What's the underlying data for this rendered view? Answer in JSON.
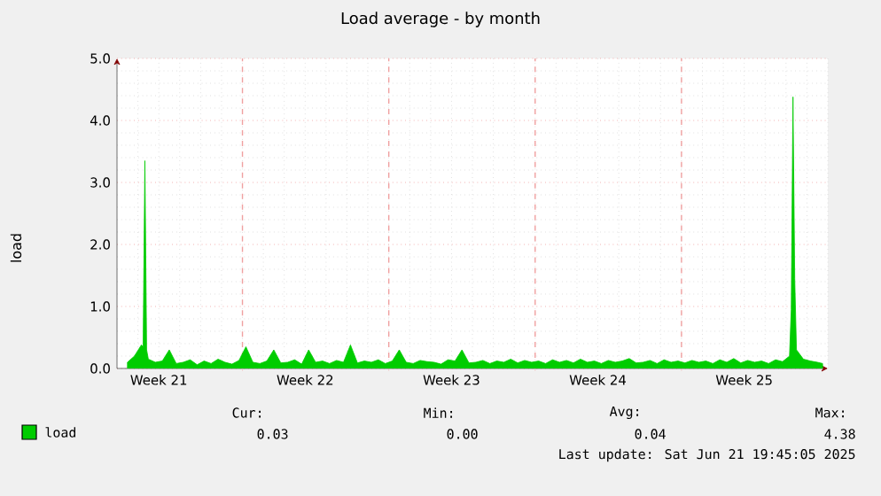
{
  "chart_data": {
    "type": "area",
    "title": "Load average - by month",
    "ylabel": "load",
    "xlim": [
      "2025-05-19",
      "2025-06-22"
    ],
    "ylim": [
      0,
      5
    ],
    "xticks": [
      {
        "value": "2025-05-21",
        "label": "Week 21"
      },
      {
        "value": "2025-05-28",
        "label": "Week 22"
      },
      {
        "value": "2025-06-04",
        "label": "Week 23"
      },
      {
        "value": "2025-06-11",
        "label": "Week 24"
      },
      {
        "value": "2025-06-18",
        "label": "Week 25"
      },
      {
        "value": "2025-05-25",
        "label": null
      },
      {
        "value": "2025-06-01",
        "label": null
      },
      {
        "value": "2025-06-08",
        "label": null
      },
      {
        "value": "2025-06-15",
        "label": null
      }
    ],
    "yticks": [
      {
        "value": 0,
        "label": "0.0"
      },
      {
        "value": 1,
        "label": "1.0"
      },
      {
        "value": 2,
        "label": "2.0"
      },
      {
        "value": 3,
        "label": "3.0"
      },
      {
        "value": 4,
        "label": "4.0"
      },
      {
        "value": 5,
        "label": "5.0"
      }
    ],
    "grid": true,
    "legend": "bottom",
    "x": [
      "2025-05-19T12:00",
      "2025-05-19T20:00",
      "2025-05-20T04:00",
      "2025-05-20T06:00",
      "2025-05-20T08:00",
      "2025-05-20T10:00",
      "2025-05-20T12:00",
      "2025-05-20T20:00",
      "2025-05-21T04:00",
      "2025-05-21T12:00",
      "2025-05-21T20:00",
      "2025-05-22T04:00",
      "2025-05-22T12:00",
      "2025-05-22T20:00",
      "2025-05-23T04:00",
      "2025-05-23T12:00",
      "2025-05-23T20:00",
      "2025-05-24T04:00",
      "2025-05-24T12:00",
      "2025-05-24T20:00",
      "2025-05-25T04:00",
      "2025-05-25T12:00",
      "2025-05-25T20:00",
      "2025-05-26T04:00",
      "2025-05-26T12:00",
      "2025-05-26T20:00",
      "2025-05-27T04:00",
      "2025-05-27T12:00",
      "2025-05-27T20:00",
      "2025-05-28T04:00",
      "2025-05-28T12:00",
      "2025-05-28T20:00",
      "2025-05-29T04:00",
      "2025-05-29T12:00",
      "2025-05-29T20:00",
      "2025-05-30T04:00",
      "2025-05-30T12:00",
      "2025-05-30T20:00",
      "2025-05-31T04:00",
      "2025-05-31T12:00",
      "2025-05-31T20:00",
      "2025-06-01T04:00",
      "2025-06-01T12:00",
      "2025-06-01T20:00",
      "2025-06-02T04:00",
      "2025-06-02T12:00",
      "2025-06-02T20:00",
      "2025-06-03T04:00",
      "2025-06-03T12:00",
      "2025-06-03T20:00",
      "2025-06-04T04:00",
      "2025-06-04T12:00",
      "2025-06-04T20:00",
      "2025-06-05T04:00",
      "2025-06-05T12:00",
      "2025-06-05T20:00",
      "2025-06-06T04:00",
      "2025-06-06T12:00",
      "2025-06-06T20:00",
      "2025-06-07T04:00",
      "2025-06-07T12:00",
      "2025-06-07T20:00",
      "2025-06-08T04:00",
      "2025-06-08T12:00",
      "2025-06-08T20:00",
      "2025-06-09T04:00",
      "2025-06-09T12:00",
      "2025-06-09T20:00",
      "2025-06-10T04:00",
      "2025-06-10T12:00",
      "2025-06-10T20:00",
      "2025-06-11T04:00",
      "2025-06-11T12:00",
      "2025-06-11T20:00",
      "2025-06-12T04:00",
      "2025-06-12T12:00",
      "2025-06-12T20:00",
      "2025-06-13T04:00",
      "2025-06-13T12:00",
      "2025-06-13T20:00",
      "2025-06-14T04:00",
      "2025-06-14T12:00",
      "2025-06-14T20:00",
      "2025-06-15T04:00",
      "2025-06-15T12:00",
      "2025-06-15T20:00",
      "2025-06-16T04:00",
      "2025-06-16T12:00",
      "2025-06-16T20:00",
      "2025-06-17T04:00",
      "2025-06-17T12:00",
      "2025-06-17T20:00",
      "2025-06-18T04:00",
      "2025-06-18T12:00",
      "2025-06-18T20:00",
      "2025-06-19T04:00",
      "2025-06-19T12:00",
      "2025-06-19T20:00",
      "2025-06-20T04:00",
      "2025-06-20T06:00",
      "2025-06-20T08:00",
      "2025-06-20T10:00",
      "2025-06-20T12:00",
      "2025-06-20T20:00",
      "2025-06-21T04:00",
      "2025-06-21T12:00",
      "2025-06-21T18:00"
    ],
    "series": [
      {
        "name": "load",
        "color": "#00cc00",
        "values": [
          0.1,
          0.2,
          0.38,
          0.35,
          3.35,
          0.3,
          0.15,
          0.1,
          0.12,
          0.3,
          0.08,
          0.1,
          0.14,
          0.06,
          0.12,
          0.08,
          0.15,
          0.1,
          0.07,
          0.13,
          0.35,
          0.1,
          0.08,
          0.12,
          0.3,
          0.09,
          0.1,
          0.14,
          0.07,
          0.3,
          0.1,
          0.12,
          0.08,
          0.13,
          0.1,
          0.38,
          0.09,
          0.12,
          0.1,
          0.14,
          0.08,
          0.12,
          0.3,
          0.1,
          0.08,
          0.13,
          0.11,
          0.1,
          0.07,
          0.14,
          0.12,
          0.3,
          0.09,
          0.1,
          0.13,
          0.08,
          0.12,
          0.1,
          0.15,
          0.09,
          0.13,
          0.1,
          0.12,
          0.08,
          0.14,
          0.1,
          0.13,
          0.09,
          0.15,
          0.1,
          0.12,
          0.08,
          0.13,
          0.1,
          0.12,
          0.16,
          0.09,
          0.1,
          0.13,
          0.08,
          0.14,
          0.1,
          0.12,
          0.09,
          0.13,
          0.1,
          0.12,
          0.08,
          0.14,
          0.1,
          0.16,
          0.09,
          0.13,
          0.1,
          0.12,
          0.08,
          0.14,
          0.11,
          0.2,
          0.95,
          4.38,
          1.45,
          0.3,
          0.15,
          0.12,
          0.1,
          0.08
        ]
      }
    ],
    "annotations": [
      "Cur:",
      "0.03",
      "Min:",
      "0.00",
      "Avg:",
      "0.04",
      "Max:",
      "4.38",
      "Last update: Sat Jun 21 19:45:05 2025"
    ]
  }
}
